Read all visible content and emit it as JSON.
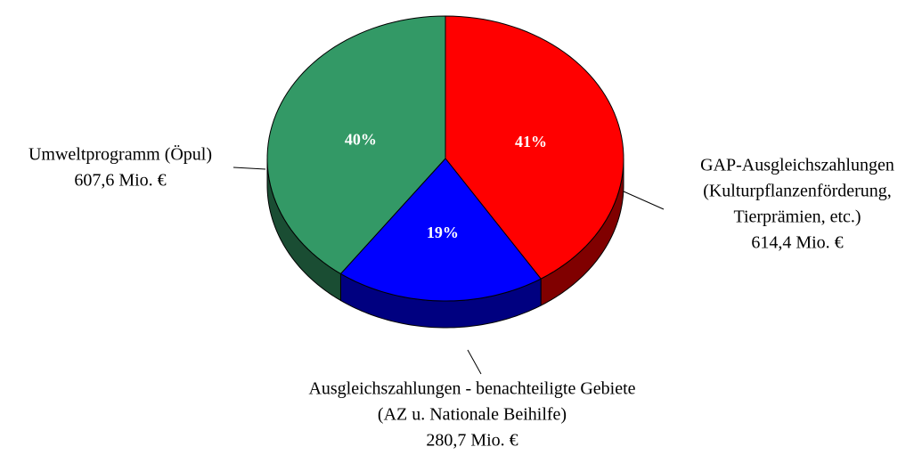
{
  "chart_data": {
    "type": "pie",
    "categories": [
      [
        "GAP-Ausgleichszahlungen",
        "(Kulturpflanzenförderung,",
        "Tierprämien, etc.)"
      ],
      [
        "Ausgleichszahlungen - benachteiligte Gebiete",
        "(AZ u. Nationale Beihilfe)"
      ],
      [
        "Umweltprogramm (Öpul)"
      ]
    ],
    "values": [
      41,
      19,
      40
    ],
    "value_labels": [
      "41%",
      "19%",
      "40%"
    ],
    "amount_labels": [
      "614,4 Mio. €",
      "280,7 Mio. €",
      "607,6 Mio. €"
    ],
    "colors": [
      "#ff0000",
      "#0000ff",
      "#339966"
    ]
  }
}
